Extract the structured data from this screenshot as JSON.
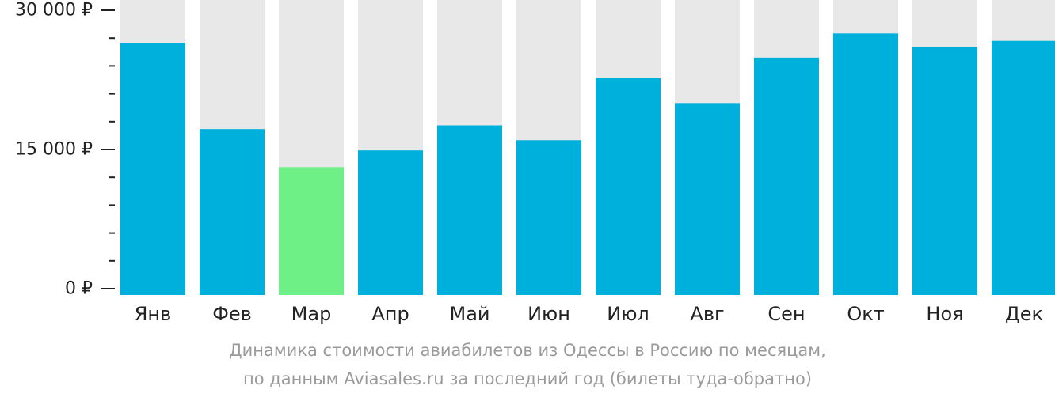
{
  "chart_data": {
    "type": "bar",
    "categories": [
      "Янв",
      "Фев",
      "Мар",
      "Апр",
      "Май",
      "Июн",
      "Июл",
      "Авг",
      "Сен",
      "Окт",
      "Ноя",
      "Дек"
    ],
    "values": [
      26500,
      17200,
      13100,
      14900,
      17600,
      16000,
      22700,
      20000,
      24900,
      27500,
      26000,
      26700
    ],
    "ylim": [
      0,
      30000
    ],
    "y_ticks": [
      0,
      15000,
      30000
    ],
    "y_tick_labels": [
      "0 ₽",
      "15 000 ₽",
      "30 000 ₽"
    ],
    "minor_ticks_per_interval": 4,
    "highlight_index": 2,
    "colors": {
      "bar": "#00b0dc",
      "highlight": "#6ef087",
      "background_column": "#e8e8e8",
      "axis_text": "#222222",
      "caption": "#9a9a9a"
    },
    "grid": false,
    "legend": "none"
  },
  "caption": {
    "line1": "Динамика стоимости авиабилетов из Одессы в Россию по месяцам,",
    "line2": "по данным Aviasales.ru за последний год (билеты туда-обратно)"
  }
}
